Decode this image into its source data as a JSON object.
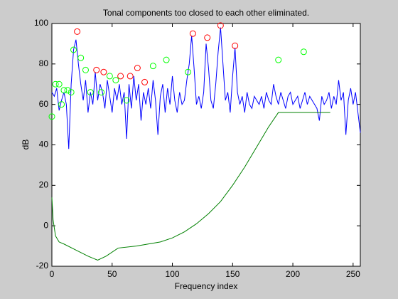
{
  "chart_data": {
    "type": "line",
    "title": "Tonal components too closed to each other eliminated.",
    "xlabel": "Frequency index",
    "ylabel": "dB",
    "xlim": [
      0,
      256
    ],
    "ylim": [
      -20,
      100
    ],
    "xticks": [
      0,
      50,
      100,
      150,
      200,
      250
    ],
    "yticks": [
      -20,
      0,
      20,
      40,
      60,
      80,
      100
    ],
    "series": [
      {
        "color": "#0000ff",
        "marker": "none",
        "x": [
          0,
          2,
          4,
          6,
          8,
          10,
          12,
          14,
          16,
          18,
          20,
          22,
          24,
          26,
          28,
          30,
          32,
          34,
          36,
          38,
          40,
          42,
          44,
          46,
          48,
          50,
          52,
          54,
          56,
          58,
          60,
          62,
          64,
          66,
          68,
          70,
          72,
          74,
          76,
          78,
          80,
          82,
          84,
          86,
          88,
          90,
          92,
          94,
          96,
          98,
          100,
          102,
          104,
          106,
          108,
          110,
          112,
          114,
          116,
          118,
          120,
          122,
          124,
          126,
          128,
          130,
          132,
          134,
          136,
          138,
          140,
          142,
          144,
          146,
          148,
          150,
          152,
          154,
          156,
          158,
          160,
          162,
          164,
          166,
          168,
          170,
          172,
          174,
          176,
          178,
          180,
          182,
          184,
          186,
          188,
          190,
          192,
          194,
          196,
          198,
          200,
          202,
          204,
          206,
          208,
          210,
          212,
          214,
          216,
          218,
          220,
          222,
          224,
          226,
          228,
          230,
          232,
          234,
          236,
          238,
          240,
          242,
          244,
          246,
          248,
          250,
          252,
          254,
          256
        ],
        "values": [
          66,
          64,
          68,
          57,
          62,
          66,
          60,
          38,
          70,
          87,
          92,
          80,
          70,
          62,
          72,
          56,
          66,
          60,
          76,
          62,
          70,
          66,
          58,
          72,
          64,
          56,
          68,
          62,
          70,
          60,
          66,
          43,
          70,
          58,
          74,
          62,
          70,
          52,
          66,
          60,
          68,
          58,
          72,
          62,
          45,
          64,
          70,
          56,
          68,
          60,
          74,
          62,
          56,
          66,
          60,
          62,
          72,
          80,
          94,
          78,
          60,
          64,
          58,
          66,
          90,
          78,
          62,
          58,
          70,
          86,
          98,
          80,
          62,
          66,
          56,
          74,
          88,
          66,
          60,
          64,
          56,
          66,
          60,
          58,
          64,
          62,
          60,
          64,
          58,
          66,
          62,
          60,
          70,
          64,
          60,
          66,
          62,
          58,
          64,
          66,
          60,
          62,
          64,
          58,
          62,
          66,
          60,
          64,
          62,
          60,
          58,
          52,
          64,
          60,
          62,
          66,
          58,
          64,
          60,
          72,
          62,
          66,
          45,
          62,
          68,
          60,
          66,
          56,
          46
        ]
      },
      {
        "color": "#008000",
        "marker": "none",
        "x": [
          0,
          1,
          3,
          6,
          10,
          20,
          30,
          38,
          45,
          55,
          70,
          90,
          100,
          110,
          120,
          130,
          140,
          150,
          160,
          170,
          180,
          188,
          231
        ],
        "values": [
          14,
          3,
          -5,
          -8,
          -9,
          -12,
          -15,
          -17,
          -15,
          -11,
          -10,
          -8,
          -6,
          -3,
          1,
          6,
          12,
          20,
          29,
          39,
          49,
          56,
          56
        ]
      },
      {
        "color": "#ff0000",
        "marker": "o",
        "x": [
          21,
          37,
          43,
          57,
          65,
          71,
          77,
          117,
          129,
          140,
          152
        ],
        "values": [
          96,
          77,
          76,
          74,
          74,
          78,
          71,
          95,
          93,
          99,
          89
        ]
      },
      {
        "color": "#00ff00",
        "marker": "o",
        "x": [
          0,
          3,
          6,
          8,
          10,
          13,
          16,
          18,
          24,
          28,
          32,
          41,
          48,
          53,
          62,
          84,
          95,
          113,
          188,
          209
        ],
        "values": [
          54,
          70,
          70,
          60,
          67,
          67,
          66,
          87,
          83,
          77,
          66,
          66,
          74,
          72,
          62,
          79,
          82,
          76,
          82,
          86
        ]
      }
    ]
  }
}
